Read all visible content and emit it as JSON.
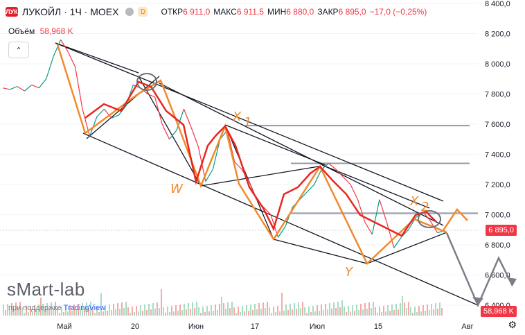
{
  "header": {
    "logo_text": "ЛУК",
    "symbol": "ЛУКОЙЛ · 1Ч · MOEX",
    "badge": "D",
    "ohlc": [
      {
        "k": "ОТКР",
        "v": "6 911,0"
      },
      {
        "k": "МАКС",
        "v": "6 911,5"
      },
      {
        "k": "МИН",
        "v": "6 880,0"
      },
      {
        "k": "ЗАКР",
        "v": "6 895,0"
      },
      {
        "k": "",
        "v": "−17,0 (−0,25%)"
      }
    ]
  },
  "volume": {
    "label": "Объём",
    "value": "58,968 K"
  },
  "collapse_icon": "chevron-up-icon",
  "watermark": {
    "brand": "sMart-lab",
    "sub_prefix": "при поддержке",
    "sub_brand": "TradingView"
  },
  "price_labels": {
    "last": "6 895,0",
    "volume": "58,968 K"
  },
  "colors": {
    "up": "#089981",
    "down": "#f23645",
    "wave_red": "#e8261f",
    "wave_orange": "#f08a2c",
    "trend": "#131722",
    "level": "#9598a1",
    "arrow": "#7b7e86"
  },
  "chart_data": {
    "type": "line",
    "ylim": [
      6400,
      8400
    ],
    "y_ticks": [
      "8 400,0",
      "8 200,0",
      "8 000,0",
      "7 800,0",
      "7 600,0",
      "7 400,0",
      "7 200,0",
      "7 000,0",
      "6 800,0",
      "6 600,0",
      "6 400,0"
    ],
    "x_ticks": [
      "Май",
      "20",
      "Июн",
      "17",
      "Июл",
      "15",
      "Авг"
    ],
    "series": [
      {
        "values": [
          7840,
          7830,
          7850,
          7820,
          7860,
          7840,
          7900,
          8050,
          8160,
          8080,
          7980,
          7700,
          7520,
          7650,
          7700,
          7640,
          7660,
          7720,
          7860,
          7840,
          7800,
          7780,
          7600,
          7500,
          7560,
          7700,
          7580,
          7450,
          7220,
          7300,
          7500,
          7560,
          7350,
          7300,
          7220,
          7100,
          7050,
          7000,
          6850,
          6920,
          7050,
          7100,
          7150,
          7200,
          7300,
          7340,
          7300,
          7250,
          7200,
          7100,
          6950,
          6870,
          7100,
          6950,
          6780,
          6850,
          6900,
          6980,
          7020,
          6960,
          6880,
          6895
        ]
      }
    ],
    "wave_labels": [
      "X",
      "1",
      "W",
      "Y",
      "X",
      "2"
    ]
  }
}
